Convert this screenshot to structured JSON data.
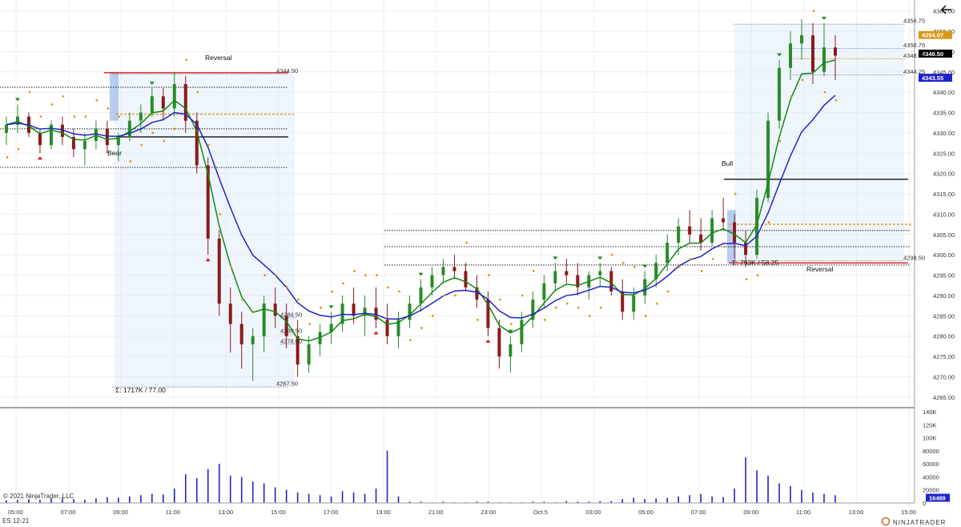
{
  "page": {
    "copyright": "© 2021 NinjaTrader, LLC",
    "instrument": "ES 12-21",
    "brand": "NINJATRADER",
    "back_icon": "left-arrow-icon"
  },
  "colors": {
    "up": "#2a8a2a",
    "down": "#8b1a1a",
    "ema_fast": "#128a12",
    "ema_slow": "#2222cc",
    "sar": "#d99a1a",
    "signal_up": "#e01010",
    "signal_down": "#1a8a1a",
    "volume": "#2222cc",
    "value_area": "#dce8f8"
  },
  "chart_data": [
    {
      "type": "candlestick",
      "title": "",
      "x_ticks": [
        "05:00",
        "07:00",
        "09:00",
        "11:00",
        "13:00",
        "15:00",
        "17:00",
        "19:00",
        "21:00",
        "23:00",
        "Oct 5",
        "03:00",
        "05:00",
        "07:00",
        "09:00",
        "11:00",
        "13:00",
        "15:00"
      ],
      "y_ticks": [
        4265,
        4270,
        4275,
        4280,
        4285,
        4290,
        4295,
        4300,
        4305,
        4310,
        4315,
        4320,
        4325,
        4330,
        4335,
        4340,
        4345,
        4350,
        4355,
        4360
      ],
      "ylim": [
        4263,
        4361.5
      ],
      "price_tags": [
        {
          "label": "4354.07",
          "value": 4354.07,
          "color": "#d99a1a"
        },
        {
          "label": "4349.50",
          "value": 4349.5,
          "color": "#000000"
        },
        {
          "label": "4343.55",
          "value": 4343.55,
          "color": "#2222cc"
        }
      ],
      "annotations": [
        {
          "text": "Reversal",
          "kind": "label"
        },
        {
          "text": "Bear",
          "kind": "label"
        },
        {
          "text": "Bull",
          "kind": "label"
        },
        {
          "text": "Reversal",
          "kind": "label"
        },
        {
          "text": "Σ: 1717K / 77.00",
          "kind": "profile"
        },
        {
          "text": "Σ: 793K / 58.25",
          "kind": "profile"
        }
      ],
      "levels": [
        {
          "label": "4344.50",
          "value": 4344.5,
          "color": "#888888"
        },
        {
          "label": "4267.50",
          "value": 4267.5,
          "color": "#888888"
        },
        {
          "label": "4284.50",
          "value": 4284.5,
          "color": "#5a8ad8"
        },
        {
          "label": "4280.50",
          "value": 4280.5,
          "color": "#d99a1a"
        },
        {
          "label": "4278.00",
          "value": 4278.0,
          "color": "#5a8ad8"
        },
        {
          "label": "4356.75",
          "value": 4356.75,
          "color": "#888888"
        },
        {
          "label": "4350.75",
          "value": 4350.75,
          "color": "#5a8ad8"
        },
        {
          "label": "4348.25",
          "value": 4348.25,
          "color": "#d99a1a"
        },
        {
          "label": "4344.25",
          "value": 4344.25,
          "color": "#5a8ad8"
        },
        {
          "label": "4298.50",
          "value": 4298.5,
          "color": "#888888"
        }
      ],
      "ohlc": [
        [
          4330,
          4334,
          4327,
          4332
        ],
        [
          4332,
          4337,
          4330,
          4334
        ],
        [
          4334,
          4335,
          4329,
          4330
        ],
        [
          4330,
          4331,
          4325,
          4327
        ],
        [
          4327,
          4333,
          4326,
          4332
        ],
        [
          4332,
          4334,
          4327,
          4329
        ],
        [
          4329,
          4331,
          4324,
          4326
        ],
        [
          4326,
          4330,
          4322,
          4328
        ],
        [
          4328,
          4333,
          4326,
          4331
        ],
        [
          4331,
          4333,
          4325,
          4327
        ],
        [
          4327,
          4330,
          4323,
          4329
        ],
        [
          4329,
          4335,
          4328,
          4333
        ],
        [
          4333,
          4337,
          4330,
          4335
        ],
        [
          4335,
          4341,
          4334,
          4339
        ],
        [
          4339,
          4341,
          4333,
          4336
        ],
        [
          4336,
          4345,
          4334,
          4342
        ],
        [
          4342,
          4344,
          4330,
          4333
        ],
        [
          4333,
          4335,
          4320,
          4322
        ],
        [
          4322,
          4324,
          4300,
          4304
        ],
        [
          4304,
          4306,
          4285,
          4288
        ],
        [
          4288,
          4292,
          4276,
          4283
        ],
        [
          4283,
          4286,
          4272,
          4278
        ],
        [
          4278,
          4282,
          4269,
          4280
        ],
        [
          4280,
          4290,
          4276,
          4288
        ],
        [
          4288,
          4292,
          4282,
          4285
        ],
        [
          4285,
          4288,
          4277,
          4280
        ],
        [
          4280,
          4284,
          4270,
          4273
        ],
        [
          4273,
          4280,
          4271,
          4278
        ],
        [
          4278,
          4283,
          4275,
          4281
        ],
        [
          4281,
          4286,
          4278,
          4283
        ],
        [
          4283,
          4290,
          4281,
          4288
        ],
        [
          4288,
          4292,
          4283,
          4285
        ],
        [
          4285,
          4290,
          4280,
          4287
        ],
        [
          4287,
          4292,
          4282,
          4284
        ],
        [
          4284,
          4288,
          4278,
          4280
        ],
        [
          4280,
          4286,
          4277,
          4284
        ],
        [
          4284,
          4290,
          4282,
          4288
        ],
        [
          4288,
          4294,
          4286,
          4292
        ],
        [
          4292,
          4297,
          4290,
          4295
        ],
        [
          4295,
          4299,
          4293,
          4297
        ],
        [
          4297,
          4300,
          4294,
          4296
        ],
        [
          4296,
          4298,
          4291,
          4292
        ],
        [
          4292,
          4295,
          4287,
          4289
        ],
        [
          4289,
          4291,
          4280,
          4282
        ],
        [
          4282,
          4284,
          4272,
          4275
        ],
        [
          4275,
          4280,
          4271,
          4278
        ],
        [
          4278,
          4286,
          4276,
          4284
        ],
        [
          4284,
          4291,
          4282,
          4289
        ],
        [
          4289,
          4295,
          4287,
          4293
        ],
        [
          4293,
          4298,
          4291,
          4296
        ],
        [
          4296,
          4299,
          4293,
          4295
        ],
        [
          4295,
          4298,
          4290,
          4292
        ],
        [
          4292,
          4296,
          4289,
          4295
        ],
        [
          4295,
          4298,
          4292,
          4296
        ],
        [
          4296,
          4297,
          4290,
          4291
        ],
        [
          4291,
          4294,
          4284,
          4286
        ],
        [
          4286,
          4292,
          4284,
          4290
        ],
        [
          4290,
          4296,
          4288,
          4294
        ],
        [
          4294,
          4300,
          4292,
          4298
        ],
        [
          4298,
          4305,
          4296,
          4303
        ],
        [
          4303,
          4309,
          4300,
          4307
        ],
        [
          4307,
          4311,
          4303,
          4305
        ],
        [
          4305,
          4309,
          4301,
          4303
        ],
        [
          4303,
          4311,
          4302,
          4309
        ],
        [
          4309,
          4314,
          4306,
          4308
        ],
        [
          4308,
          4310,
          4299,
          4303
        ],
        [
          4303,
          4306,
          4297,
          4300
        ],
        [
          4300,
          4316,
          4299,
          4314
        ],
        [
          4314,
          4335,
          4313,
          4333
        ],
        [
          4333,
          4348,
          4331,
          4346
        ],
        [
          4346,
          4355,
          4343,
          4352
        ],
        [
          4352,
          4358,
          4348,
          4354
        ],
        [
          4354,
          4357,
          4342,
          4345
        ],
        [
          4345,
          4357,
          4344,
          4351
        ],
        [
          4351,
          4354,
          4343,
          4349
        ]
      ],
      "volume": [
        4,
        5,
        6,
        5,
        7,
        8,
        6,
        5,
        7,
        9,
        8,
        10,
        12,
        14,
        13,
        22,
        44,
        38,
        52,
        60,
        42,
        40,
        33,
        30,
        24,
        20,
        16,
        14,
        12,
        10,
        18,
        16,
        14,
        22,
        80,
        10,
        2,
        2,
        1,
        2,
        1,
        1,
        2,
        2,
        1,
        1,
        1,
        2,
        2,
        1,
        3,
        2,
        2,
        3,
        3,
        6,
        8,
        6,
        7,
        8,
        10,
        12,
        14,
        10,
        9,
        22,
        70,
        50,
        42,
        30,
        26,
        20,
        16,
        14,
        12
      ],
      "volume_ticks": [
        "0",
        "20000",
        "40000",
        "60000",
        "80000",
        "100K",
        "120K",
        "140K"
      ],
      "volume_tag": "16489"
    }
  ]
}
